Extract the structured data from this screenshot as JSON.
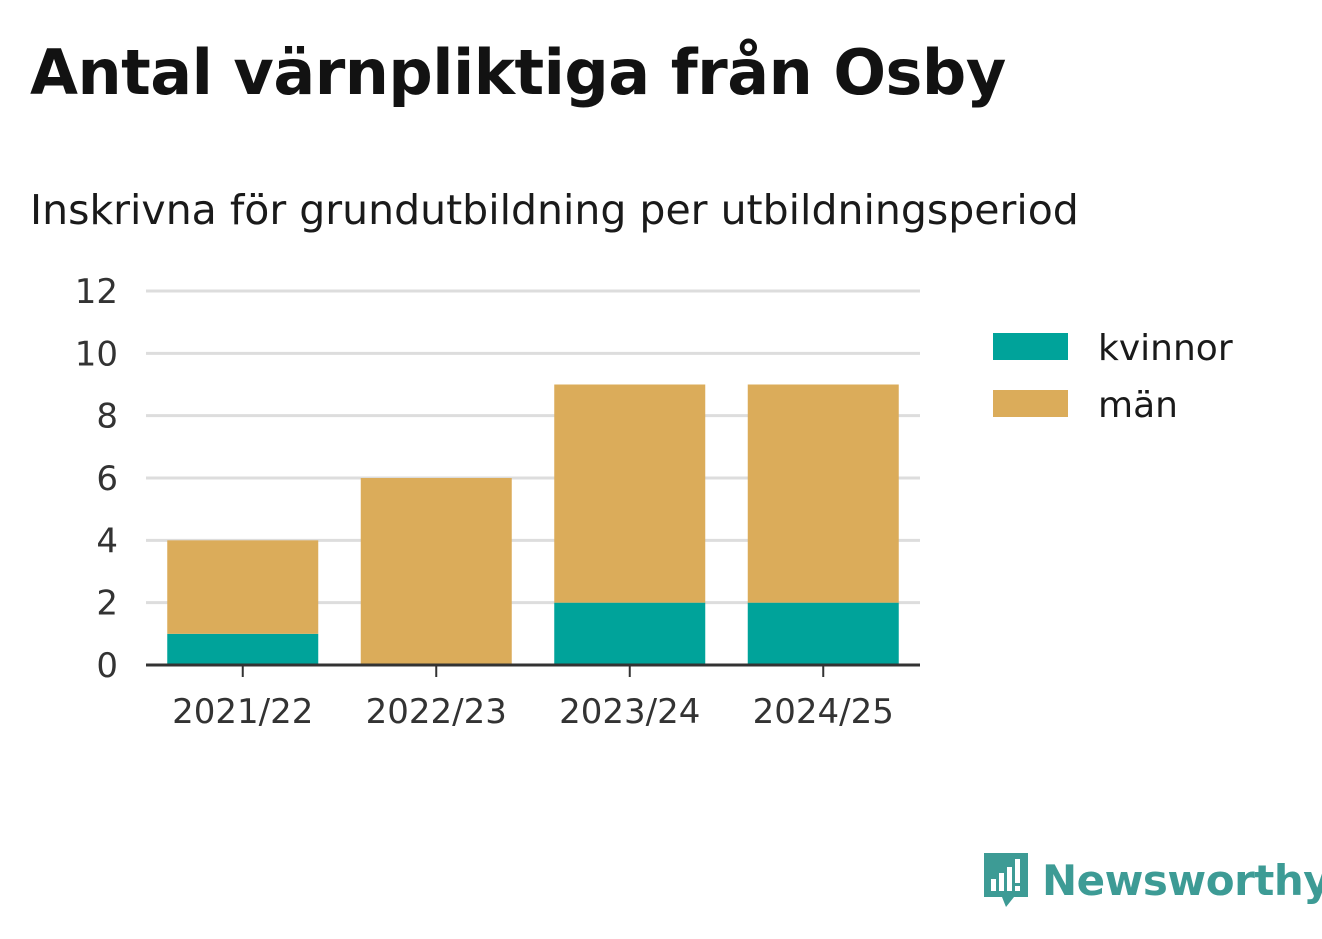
{
  "chart_data": {
    "type": "bar",
    "stacked": true,
    "title": "Antal värnpliktiga från Osby",
    "subtitle": "Inskrivna för grundutbildning per utbildningsperiod",
    "categories": [
      "2021/22",
      "2022/23",
      "2023/24",
      "2024/25"
    ],
    "series": [
      {
        "name": "kvinnor",
        "color": "#00a39a",
        "values": [
          1,
          0,
          2,
          2
        ]
      },
      {
        "name": "män",
        "color": "#dbac5a",
        "values": [
          3,
          6,
          7,
          7
        ]
      }
    ],
    "ylim": [
      0,
      12
    ],
    "yticks": [
      0,
      2,
      4,
      6,
      8,
      10,
      12
    ],
    "grid": true,
    "legend_position": "right"
  },
  "branding": {
    "name": "Newsworthy",
    "icon": "newsworthy-logo-icon",
    "color": "#3d9b95"
  }
}
